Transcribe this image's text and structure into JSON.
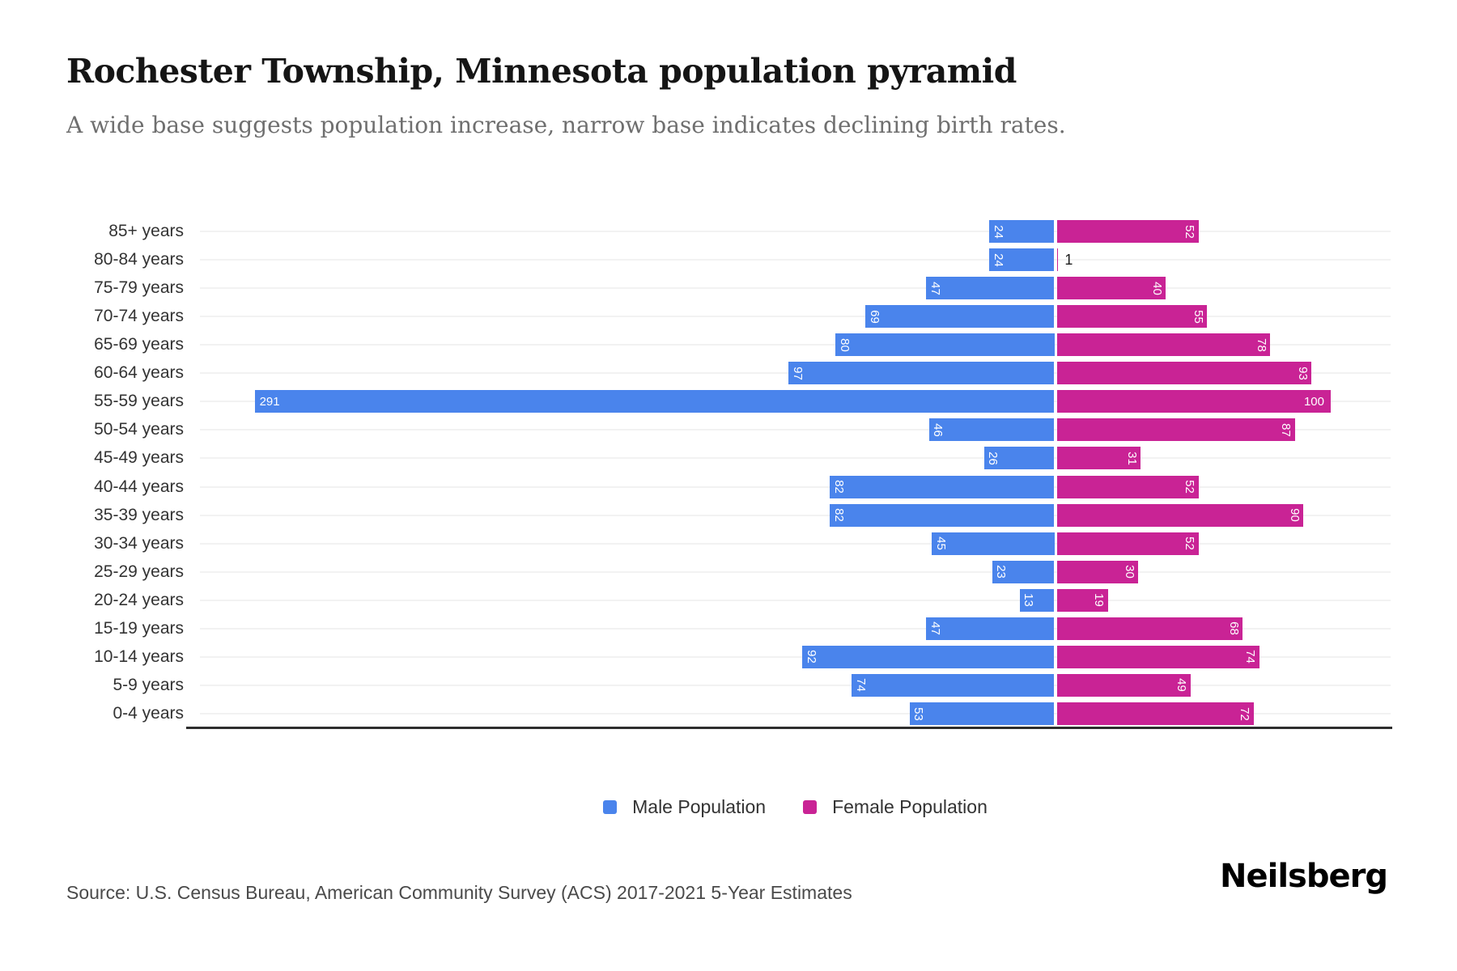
{
  "header": {
    "title": "Rochester Township, Minnesota population pyramid",
    "subtitle": "A wide base suggests population increase, narrow base indicates declining birth rates."
  },
  "chart_data": {
    "type": "bar",
    "variant": "population-pyramid",
    "orientation": "horizontal",
    "title": "Rochester Township, Minnesota population pyramid",
    "categories": [
      "85+ years",
      "80-84 years",
      "75-79 years",
      "70-74 years",
      "65-69 years",
      "60-64 years",
      "55-59 years",
      "50-54 years",
      "45-49 years",
      "40-44 years",
      "35-39 years",
      "30-34 years",
      "25-29 years",
      "20-24 years",
      "15-19 years",
      "10-14 years",
      "5-9 years",
      "0-4 years"
    ],
    "series": [
      {
        "name": "Male Population",
        "side": "left",
        "color": "#4a84ec",
        "values": [
          24,
          24,
          47,
          69,
          80,
          97,
          291,
          46,
          26,
          82,
          82,
          45,
          23,
          13,
          47,
          92,
          74,
          53
        ]
      },
      {
        "name": "Female Population",
        "side": "right",
        "color": "#c92395",
        "values": [
          52,
          1,
          40,
          55,
          78,
          93,
          100,
          87,
          31,
          52,
          90,
          52,
          30,
          19,
          68,
          74,
          49,
          72
        ]
      }
    ],
    "value_labels": "on bar tips, white inside bars, rotated 90deg for 2-digit values, dark outside bar when bar too small",
    "xlim_left_units": 311,
    "xlim_right_units": 122,
    "grid": "light horizontal gridline at each category row center",
    "legend_position": "bottom center",
    "axis_line_color": "#2e2e2e"
  },
  "legend": {
    "items": [
      {
        "label": "Male Population",
        "color": "#4a84ec"
      },
      {
        "label": "Female Population",
        "color": "#c92395"
      }
    ]
  },
  "footer": {
    "source": "Source: U.S. Census Bureau, American Community Survey (ACS) 2017-2021 5-Year Estimates",
    "brand": "Neilsberg"
  }
}
